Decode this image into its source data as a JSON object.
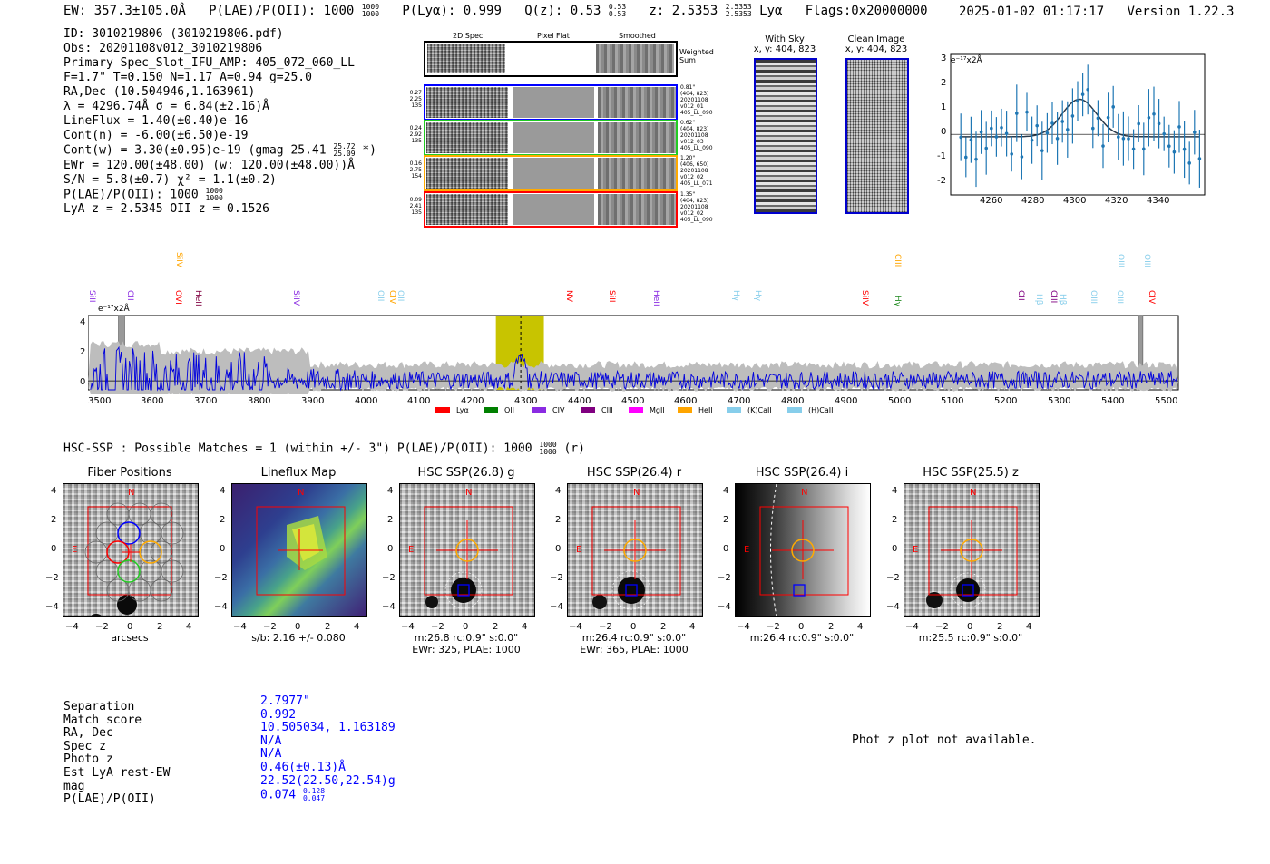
{
  "header": {
    "ew_label": "EW: 357.3±105.0Å",
    "plae_label": "P(LAE)/P(OII): 1000",
    "plae_hi": "1000",
    "plae_lo": "1000",
    "plya_label": "P(Lyα): 0.999",
    "qz_label": "Q(z): 0.53",
    "qz_hi": "0.53",
    "qz_lo": "0.53",
    "z_label": "z: 2.5353",
    "z_hi": "2.5353",
    "z_lo": "2.5353",
    "z_line": "Lyα",
    "flags": "Flags:0x20000000",
    "datetime": "2025-01-02 01:17:17",
    "version": "Version 1.22.3"
  },
  "info": {
    "id": "ID: 3010219806 (3010219806.pdf)",
    "obs": "Obs: 20201108v012_3010219806",
    "primary": "Primary Spec_Slot_IFU_AMP: 405_072_060_LL",
    "params": "F=1.7\"  T=0.150  N=1.17  A=0.94  g=25.0",
    "radec": "RA,Dec (10.504946,1.163961)",
    "lambda": "λ = 4296.74Å  σ = 6.84(±2.16)Å",
    "lineflux": "LineFlux = 1.40(±0.40)e-16",
    "cont_n": "Cont(n) = -6.00(±6.50)e-19",
    "cont_w": "Cont(w) = 3.30(±0.95)e-19 (gmag 25.41",
    "cont_w_hi": "25.72",
    "cont_w_lo": "25.09",
    "cont_w_end": "*)",
    "ewr": "EWr = 120.00(±48.00) (w: 120.00(±48.00))Å",
    "sn": "S/N = 5.8(±0.7)  χ² = 1.1(±0.2)",
    "plae": "P(LAE)/P(OII): 1000",
    "plae_hi": "1000",
    "plae_lo": "1000",
    "lyaz": "LyA z = 2.5345  OII z = 0.1526"
  },
  "spec2d": {
    "col_2d": "2D Spec",
    "col_flat": "Pixel Flat",
    "col_smooth": "Smoothed",
    "weighted_label": "Weighted Sum",
    "rows": [
      {
        "left": [
          "0.27",
          "2.25",
          "135"
        ],
        "right": [
          "0.81\"",
          "(404, 823)",
          "20201108",
          "v012_01",
          "405_LL_090"
        ],
        "color": "#0000ff"
      },
      {
        "left": [
          "0.24",
          "2.92",
          "135"
        ],
        "right": [
          "0.62\"",
          "(404, 823)",
          "20201108",
          "v012_03",
          "405_LL_090"
        ],
        "color": "#22cc22"
      },
      {
        "left": [
          "0.16",
          "2.75",
          "154"
        ],
        "right": [
          "1.20\"",
          "(406, 650)",
          "20201108",
          "v012_02",
          "405_LL_071"
        ],
        "color": "#ffaa00"
      },
      {
        "left": [
          "0.09",
          "2.41",
          "135"
        ],
        "right": [
          "1.35\"",
          "(404, 823)",
          "20201108",
          "v012_02",
          "405_LL_090"
        ],
        "color": "#ff0000"
      }
    ]
  },
  "cutouts": {
    "sky_title": "With Sky",
    "sky_coords": "x, y: 404, 823",
    "clean_title": "Clean Image",
    "clean_coords": "x, y: 404, 823"
  },
  "zoom_plot": {
    "unit_label": "e⁻¹⁷x2Å",
    "x_ticks": [
      "4260",
      "4280",
      "4300",
      "4320",
      "4340"
    ],
    "y_ticks": [
      "3",
      "2",
      "1",
      "0",
      "-1",
      "-2"
    ]
  },
  "full_spectrum": {
    "unit_label": "e⁻¹⁷x2Å",
    "x_ticks": [
      "3500",
      "3600",
      "3700",
      "3800",
      "3900",
      "4000",
      "4100",
      "4200",
      "4300",
      "4400",
      "4500",
      "4600",
      "4700",
      "4800",
      "4900",
      "5000",
      "5100",
      "5200",
      "5300",
      "5400",
      "5500"
    ],
    "y_ticks": [
      "4",
      "2",
      "0"
    ],
    "line_labels": [
      {
        "text": "SiII",
        "color": "#8a2be2"
      },
      {
        "text": "CII",
        "color": "#8a2be2"
      },
      {
        "text": "SiIV",
        "color": "#ffa500"
      },
      {
        "text": "OVI",
        "color": "#ff0000"
      },
      {
        "text": "HeII",
        "color": "#800040"
      },
      {
        "text": "SiIV",
        "color": "#8a2be2"
      },
      {
        "text": "OII",
        "color": "#87ceeb"
      },
      {
        "text": "CIV",
        "color": "#ffa500"
      },
      {
        "text": "OII",
        "color": "#87ceeb"
      },
      {
        "text": "NV",
        "color": "#ff0000"
      },
      {
        "text": "SiII",
        "color": "#ff0000"
      },
      {
        "text": "HeII",
        "color": "#8a2be2"
      },
      {
        "text": "Hγ",
        "color": "#87ceeb"
      },
      {
        "text": "Hγ",
        "color": "#87ceeb"
      },
      {
        "text": "SiIV",
        "color": "#ff0000"
      },
      {
        "text": "CIII",
        "color": "#ffa500"
      },
      {
        "text": "Hγ",
        "color": "#228b22"
      },
      {
        "text": "CII",
        "color": "#800080"
      },
      {
        "text": "Hβ",
        "color": "#87ceeb"
      },
      {
        "text": "CIII",
        "color": "#800080"
      },
      {
        "text": "Hβ",
        "color": "#87ceeb"
      },
      {
        "text": "OIII",
        "color": "#87ceeb"
      },
      {
        "text": "OIII",
        "color": "#87ceeb"
      },
      {
        "text": "OIII",
        "color": "#87ceeb"
      },
      {
        "text": "OIII",
        "color": "#87ceeb"
      },
      {
        "text": "CIV",
        "color": "#ff0000"
      }
    ],
    "legend": [
      {
        "label": "Lyα",
        "color": "#ff0000"
      },
      {
        "label": "OII",
        "color": "#008000"
      },
      {
        "label": "CIV",
        "color": "#8a2be2"
      },
      {
        "label": "CIII",
        "color": "#800080"
      },
      {
        "label": "MgII",
        "color": "#ff00ff"
      },
      {
        "label": "HeII",
        "color": "#ffa500"
      },
      {
        "label": "(K)CaII",
        "color": "#87ceeb"
      },
      {
        "label": "(H)CaII",
        "color": "#87ceeb"
      }
    ]
  },
  "hsc": {
    "heading": "HSC-SSP : Possible Matches = 1 (within +/- 3\")  P(LAE)/P(OII): 1000",
    "heading_hi": "1000",
    "heading_lo": "1000",
    "heading_end": "(r)",
    "panels": [
      {
        "title": "Fiber Positions",
        "caption1": "arcsecs",
        "caption2": ""
      },
      {
        "title": "Lineflux Map",
        "caption1": "s/b: 2.16 +/- 0.080",
        "caption2": ""
      },
      {
        "title": "HSC SSP(26.8) g",
        "caption1": "m:26.8 rc:0.9\"  s:0.0\"",
        "caption2": "EWr: 325, PLAE: 1000"
      },
      {
        "title": "HSC SSP(26.4) r",
        "caption1": "m:26.4 rc:0.9\"  s:0.0\"",
        "caption2": "EWr: 365, PLAE: 1000"
      },
      {
        "title": "HSC SSP(26.4) i",
        "caption1": "m:26.4 rc:0.9\"  s:0.0\"",
        "caption2": ""
      },
      {
        "title": "HSC SSP(25.5) z",
        "caption1": "m:25.5 rc:0.9\"  s:0.0\"",
        "caption2": ""
      }
    ],
    "axis_ticks": [
      "4",
      "2",
      "0",
      "−2",
      "−4"
    ],
    "x_ticks": [
      "−4",
      "−2",
      "0",
      "2",
      "4"
    ],
    "north": "N",
    "east": "E"
  },
  "match_table": {
    "labels": [
      "Separation",
      "Match score",
      "RA, Dec",
      "Spec z",
      "Photo z",
      "Est LyA rest-EW",
      "mag",
      "P(LAE)/P(OII)"
    ],
    "values": [
      "2.7977\"",
      "0.992",
      "10.505034, 1.163189",
      "N/A",
      "N/A",
      "0.46(±0.13)Å",
      "22.52(22.50,22.54)g",
      "0.074"
    ],
    "plae_hi": "0.128",
    "plae_lo": "0.047"
  },
  "photz": {
    "message": "Phot z plot not available."
  }
}
